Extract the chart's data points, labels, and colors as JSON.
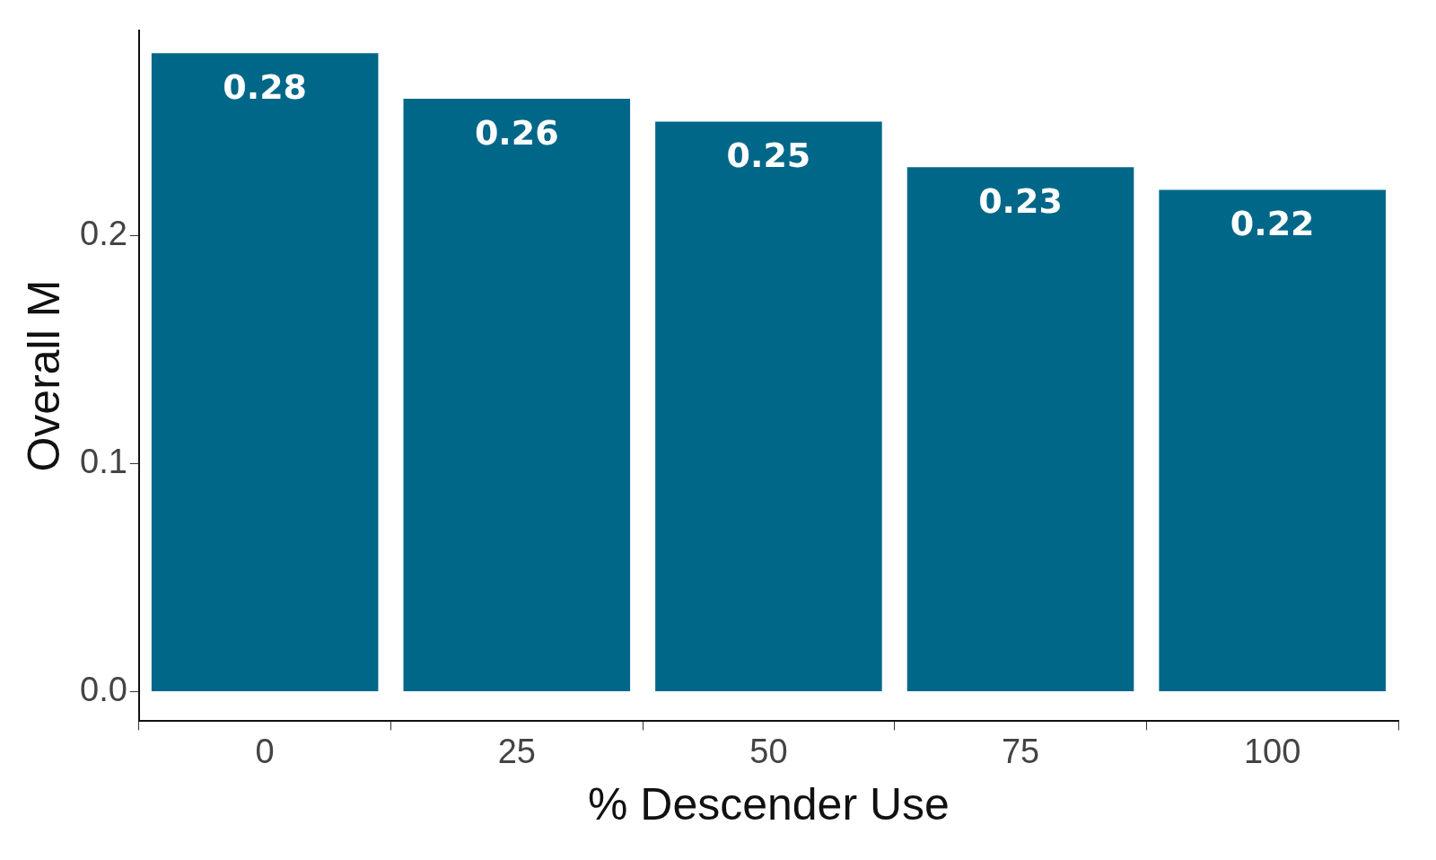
{
  "chart_data": {
    "type": "bar",
    "xlabel": "% Descender Use",
    "ylabel": "Overall M",
    "categories": [
      "0",
      "25",
      "50",
      "75",
      "100"
    ],
    "values": [
      0.28,
      0.26,
      0.25,
      0.23,
      0.22
    ],
    "color": "#006789",
    "ylim": [
      -0.013,
      0.29
    ],
    "yticks": [
      {
        "value": 0,
        "label": "0.0"
      },
      {
        "value": 0.1,
        "label": "0.1"
      },
      {
        "value": 0.2,
        "label": "0.2"
      }
    ],
    "data_labels": true,
    "grid": false,
    "legend": false
  }
}
